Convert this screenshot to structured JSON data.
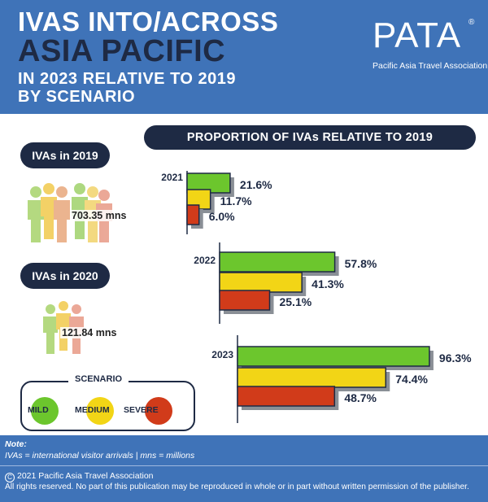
{
  "header": {
    "title_line1": "IVAS INTO/ACROSS",
    "title_line2": "ASIA PACIFIC",
    "title_line3": "IN 2023 RELATIVE TO 2019",
    "title_line4": "BY SCENARIO",
    "logo_text": "PATA",
    "logo_reg": "®",
    "logo_sub": "Pacific Asia Travel Association"
  },
  "ivas_2019": {
    "label": "IVAs in 2019",
    "value": "703.35 mns"
  },
  "ivas_2020": {
    "label": "IVAs in 2020",
    "value": "121.84 mns"
  },
  "scenario": {
    "title": "SCENARIO",
    "items": [
      {
        "label": "MILD",
        "color": "#6cc62d"
      },
      {
        "label": "MEDIUM",
        "color": "#f2d516"
      },
      {
        "label": "SEVERE",
        "color": "#d13b1a"
      }
    ]
  },
  "chart_data": {
    "type": "bar",
    "orientation": "horizontal",
    "title": "PROPORTION OF IVAs RELATIVE TO 2019",
    "categories": [
      "2021",
      "2022",
      "2023"
    ],
    "series": [
      {
        "name": "MILD",
        "color": "#6cc62d",
        "values": [
          21.6,
          57.8,
          96.3
        ],
        "labels": [
          "21.6%",
          "57.8%",
          "96.3%"
        ]
      },
      {
        "name": "MEDIUM",
        "color": "#f2d516",
        "values": [
          11.7,
          41.3,
          74.4
        ],
        "labels": [
          "11.7%",
          "41.3%",
          "74.4%"
        ]
      },
      {
        "name": "SEVERE",
        "color": "#d13b1a",
        "values": [
          6.0,
          25.1,
          48.7
        ],
        "labels": [
          "6.0%",
          "25.1%",
          "48.7%"
        ]
      }
    ],
    "unit": "%"
  },
  "notes": {
    "title": "Note:",
    "text": "IVAs = international visitor arrivals | mns = millions",
    "copyright_symbol": "C",
    "copyright": "2021 Pacific Asia Travel Association",
    "rights": "All rights reserved. No part of this publication may be reproduced in whole or in part without written permission of the publisher."
  }
}
